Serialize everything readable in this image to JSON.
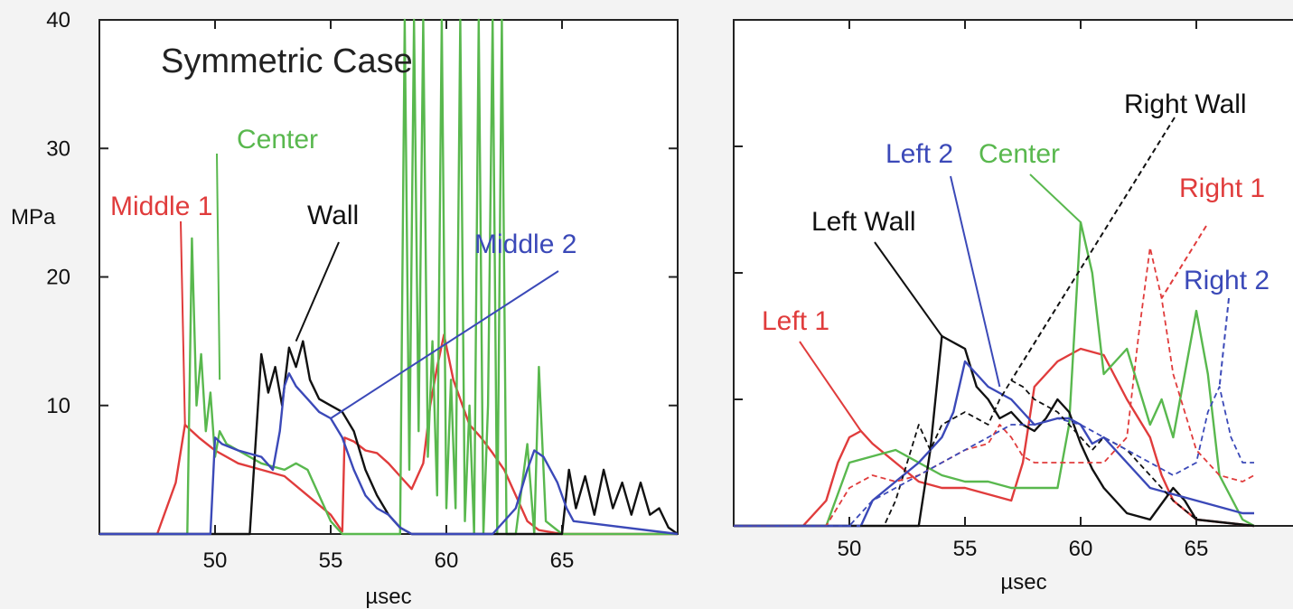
{
  "colors": {
    "red": "#e03c3c",
    "green": "#59b84e",
    "black": "#111111",
    "blue": "#3b49b8",
    "background": "#f3f3f3"
  },
  "chart_data": [
    {
      "type": "line",
      "title": "Symmetric Case",
      "xlabel": "µsec",
      "ylabel": "MPa",
      "xlim": [
        45,
        70
      ],
      "ylim": [
        0,
        40
      ],
      "xticks": [
        50,
        55,
        60,
        65
      ],
      "yticks": [
        10,
        20,
        30,
        40
      ],
      "grid": false,
      "series": [
        {
          "name": "Middle 1",
          "color": "#e03c3c",
          "dashed": false,
          "x": [
            45,
            47.5,
            48.3,
            48.7,
            49.3,
            50,
            51,
            52,
            53,
            54,
            55,
            55.5,
            55.6,
            56,
            56.5,
            57,
            57.5,
            58,
            58.5,
            59,
            59.3,
            59.6,
            59.9,
            60.3,
            60.7,
            61,
            61.5,
            62,
            62.5,
            63,
            63.5,
            64,
            65,
            70
          ],
          "y": [
            0,
            0,
            4,
            8.5,
            7.5,
            6.5,
            5.5,
            5,
            4.5,
            3,
            1.5,
            0.2,
            7.5,
            7.2,
            6.5,
            6.3,
            5.5,
            4.5,
            3.5,
            5.5,
            10,
            13,
            15.5,
            12,
            10,
            8.5,
            7.5,
            6.3,
            5,
            3,
            1,
            0.3,
            0,
            0
          ]
        },
        {
          "name": "Center",
          "color": "#59b84e",
          "dashed": false,
          "x": [
            45,
            48.8,
            49,
            49.2,
            49.4,
            49.6,
            49.8,
            50,
            50.2,
            50.5,
            51,
            52,
            53,
            53.5,
            54,
            54.5,
            55,
            55.5,
            58,
            58.2,
            58.4,
            58.6,
            58.8,
            59,
            59.2,
            59.4,
            59.6,
            59.8,
            60,
            60.2,
            60.4,
            60.6,
            60.8,
            61,
            61.2,
            61.4,
            61.6,
            61.8,
            62,
            62.2,
            62.4,
            62.6,
            63,
            63.5,
            63.8,
            64,
            64.3,
            65,
            70
          ],
          "y": [
            0,
            0,
            23,
            10,
            14,
            8,
            11,
            6,
            8,
            7,
            6.5,
            5.5,
            5,
            5.5,
            5,
            3,
            1,
            0,
            0,
            40,
            5,
            40,
            8,
            40,
            6,
            15,
            3,
            40,
            2,
            12,
            2,
            40,
            1,
            10,
            0,
            40,
            0,
            10,
            40,
            0,
            40,
            0,
            0,
            7,
            0,
            13,
            1,
            0,
            0
          ]
        },
        {
          "name": "Wall",
          "color": "#111111",
          "dashed": false,
          "x": [
            45,
            51.5,
            52,
            52.3,
            52.6,
            52.9,
            53.2,
            53.5,
            53.8,
            54.1,
            54.5,
            55,
            55.5,
            56,
            56.5,
            57,
            57.5,
            58,
            58.5,
            59,
            60,
            65,
            65.3,
            65.6,
            66,
            66.4,
            66.8,
            67.2,
            67.6,
            68,
            68.4,
            68.8,
            69.2,
            69.6,
            70
          ],
          "y": [
            0,
            0,
            14,
            11,
            13,
            10,
            14.5,
            13,
            15,
            12,
            10.5,
            10,
            9.5,
            8,
            5,
            3,
            1.5,
            0.5,
            0,
            0,
            0,
            0,
            5,
            2,
            4.5,
            1.5,
            5,
            2,
            4,
            1.5,
            4,
            1.5,
            2,
            0.5,
            0
          ]
        },
        {
          "name": "Middle 2",
          "color": "#3b49b8",
          "dashed": false,
          "x": [
            45,
            49.8,
            50,
            50.3,
            51,
            52,
            52.5,
            52.8,
            53,
            53.2,
            53.5,
            54,
            54.5,
            55,
            55.5,
            56,
            56.5,
            57,
            57.5,
            58,
            58.5,
            59,
            62,
            63,
            63.5,
            63.8,
            64.2,
            64.8,
            65.2,
            65.5,
            70
          ],
          "y": [
            0,
            0,
            7.5,
            7,
            6.5,
            6,
            5,
            8,
            11.5,
            12.5,
            11.5,
            10.5,
            9.5,
            9,
            7.5,
            5,
            3,
            2,
            1.5,
            0.5,
            0,
            0,
            0,
            2,
            5,
            6.5,
            6,
            4,
            2,
            1,
            0
          ]
        }
      ],
      "annotations": [
        {
          "text": "Middle 1",
          "color": "#e03c3c",
          "target": [
            48.7,
            8.5
          ]
        },
        {
          "text": "Center",
          "color": "#59b84e",
          "target": [
            50.2,
            12
          ]
        },
        {
          "text": "Wall",
          "color": "#111111",
          "target": [
            53.5,
            15
          ]
        },
        {
          "text": "Middle 2",
          "color": "#3b49b8",
          "target": [
            55,
            9
          ]
        }
      ]
    },
    {
      "type": "line",
      "xlabel": "µsec",
      "xlim": [
        45,
        70
      ],
      "ylim": [
        0,
        40
      ],
      "xticks": [
        50,
        55,
        60,
        65
      ],
      "grid": false,
      "series": [
        {
          "name": "Left 1",
          "color": "#e03c3c",
          "dashed": false,
          "x": [
            45,
            48,
            49,
            49.5,
            50,
            50.5,
            51,
            52,
            53,
            54,
            55,
            56,
            57,
            57.5,
            58,
            59,
            60,
            61,
            62,
            63,
            63.5,
            64,
            65,
            67.5
          ],
          "y": [
            0,
            0,
            2,
            5,
            7,
            7.5,
            6.5,
            5,
            3.5,
            3,
            3,
            2.5,
            2,
            5,
            11,
            13,
            14,
            13.5,
            10,
            7,
            4,
            2,
            0.5,
            0
          ]
        },
        {
          "name": "Center",
          "color": "#59b84e",
          "dashed": false,
          "x": [
            45,
            49,
            50,
            51,
            52,
            53,
            54,
            55,
            56,
            57,
            58,
            59,
            59.5,
            60,
            60.5,
            61,
            61.5,
            62,
            63,
            63.5,
            64,
            65,
            65.5,
            66,
            67,
            67.5
          ],
          "y": [
            0,
            0,
            5,
            5.5,
            6,
            5,
            4,
            3.5,
            3.5,
            3,
            3,
            3,
            8,
            24,
            20,
            12,
            13,
            14,
            8,
            10,
            7,
            17,
            12,
            4,
            0.5,
            0
          ]
        },
        {
          "name": "Left Wall",
          "color": "#111111",
          "dashed": false,
          "x": [
            45,
            53,
            53.5,
            54,
            54.5,
            55,
            55.5,
            56,
            56.5,
            57,
            57.5,
            58,
            58.5,
            59,
            59.5,
            60,
            60.5,
            61,
            62,
            63,
            64,
            64.5,
            65,
            67.5
          ],
          "y": [
            0,
            0,
            6,
            15,
            14.5,
            14,
            11,
            10,
            8.5,
            9,
            8,
            7.5,
            8.5,
            10,
            9,
            6.5,
            4.5,
            3,
            1,
            0.5,
            3,
            2,
            0.5,
            0
          ]
        },
        {
          "name": "Left 2",
          "color": "#3b49b8",
          "dashed": false,
          "x": [
            45,
            50.5,
            51,
            52,
            53,
            54,
            54.5,
            55,
            55.5,
            56,
            57,
            57.5,
            58,
            59,
            59.5,
            60,
            60.5,
            61,
            62,
            63,
            64,
            65,
            66,
            67,
            67.5
          ],
          "y": [
            0,
            0,
            2,
            3.5,
            5,
            7,
            9,
            13,
            12,
            11,
            10,
            9,
            8,
            8.5,
            8.5,
            8,
            6.5,
            7,
            5,
            3,
            2.5,
            2,
            1.5,
            1,
            1
          ]
        },
        {
          "name": "Right Wall",
          "color": "#111111",
          "dashed": true,
          "x": [
            45,
            51.5,
            52,
            52.5,
            53,
            53.5,
            54,
            55,
            56,
            56.5,
            57,
            57.5,
            58,
            59,
            60,
            60.5,
            61,
            62,
            63,
            64,
            65,
            67.5
          ],
          "y": [
            0,
            0,
            2,
            5,
            8,
            6,
            8,
            9,
            8,
            10,
            11.5,
            11,
            10,
            9,
            7,
            6,
            7,
            6,
            4,
            2,
            0.5,
            0
          ]
        },
        {
          "name": "Right 1",
          "color": "#e03c3c",
          "dashed": true,
          "x": [
            45,
            49,
            50,
            51,
            52,
            53,
            54,
            55,
            56,
            56.5,
            57,
            57.5,
            58,
            59,
            60,
            61,
            62,
            62.5,
            63,
            63.5,
            64,
            65,
            66,
            67,
            67.5
          ],
          "y": [
            0,
            0,
            3,
            4,
            3.5,
            4,
            5,
            6,
            6.5,
            8,
            7,
            5.5,
            5,
            5,
            5,
            5,
            7,
            15,
            22,
            18,
            12,
            6,
            4,
            3.5,
            4
          ]
        },
        {
          "name": "Right 2",
          "color": "#3b49b8",
          "dashed": true,
          "x": [
            45,
            50,
            51,
            52,
            53,
            54,
            55,
            56,
            57,
            58,
            59,
            60,
            61,
            62,
            63,
            64,
            65,
            65.5,
            66,
            66.5,
            67,
            67.5
          ],
          "y": [
            0,
            0,
            2,
            3,
            4,
            5,
            6,
            7,
            8,
            8,
            8.5,
            8,
            7,
            6,
            5,
            4,
            5,
            9,
            11,
            7,
            5,
            5
          ]
        }
      ],
      "annotations": [
        {
          "text": "Left 1",
          "color": "#e03c3c",
          "target": [
            50.5,
            7.5
          ]
        },
        {
          "text": "Left Wall",
          "color": "#111111",
          "target": [
            54,
            15
          ]
        },
        {
          "text": "Left 2",
          "color": "#3b49b8",
          "target": [
            56.5,
            11
          ]
        },
        {
          "text": "Center",
          "color": "#59b84e",
          "target": [
            60,
            24
          ]
        },
        {
          "text": "Right Wall",
          "color": "#111111",
          "target": [
            57,
            11.5
          ]
        },
        {
          "text": "Right 1",
          "color": "#e03c3c",
          "target": [
            63.5,
            18
          ]
        },
        {
          "text": "Right 2",
          "color": "#3b49b8",
          "target": [
            66,
            11
          ]
        }
      ]
    }
  ]
}
